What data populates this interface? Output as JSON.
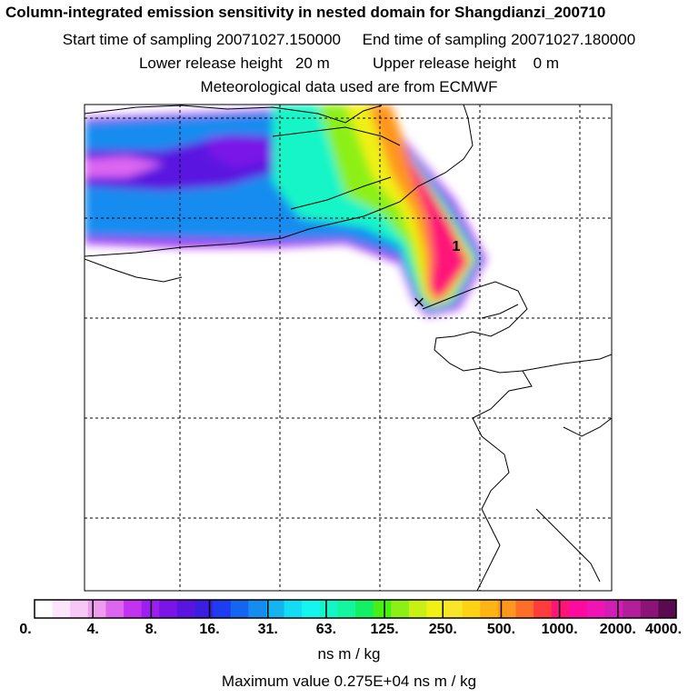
{
  "title": "Column-integrated emission sensitivity in nested domain for Shangdianzi_200710",
  "subtitle": {
    "sampling": "Start time of sampling 20071027.150000     End time of sampling 20071027.180000",
    "release": "Lower release height   20 m          Upper release height    0 m",
    "met": "Meteorological data used are from ECMWF"
  },
  "legend": {
    "ticks": [
      "0.",
      "4.",
      "8.",
      "16.",
      "31.",
      "63.",
      "125.",
      "250.",
      "500.",
      "1000.",
      "2000.",
      "4000."
    ],
    "colors": [
      "#ffffff",
      "#fbe6fb",
      "#f5c8f5",
      "#ee9cee",
      "#dd66f0",
      "#c233f0",
      "#9d1ff0",
      "#7a14e8",
      "#5a14e0",
      "#3c1ee0",
      "#1e3cf0",
      "#1466f0",
      "#148cf0",
      "#14b4f0",
      "#14dcf5",
      "#14f5f0",
      "#14f5c8",
      "#14f5a0",
      "#14f064",
      "#46f014",
      "#8cf014",
      "#c8f014",
      "#f0f014",
      "#fae628",
      "#ffd214",
      "#ffb414",
      "#ff961e",
      "#ff6e28",
      "#ff3c3c",
      "#ff1478",
      "#ff0aa0",
      "#f014b4",
      "#d21eb4",
      "#b41e9b",
      "#8c1478",
      "#5a0a50"
    ],
    "units": "ns m / kg"
  },
  "max_value": "Maximum value  0.275E+04 ns m / kg",
  "markers": {
    "release_point": "×",
    "label": "1"
  }
}
